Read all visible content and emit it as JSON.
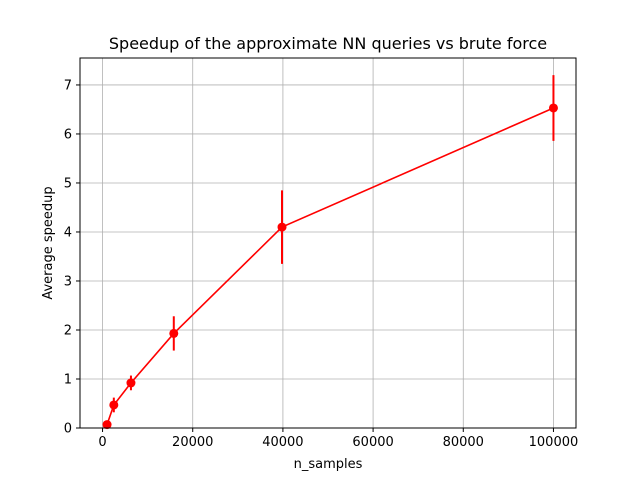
{
  "chart_data": {
    "type": "line",
    "title": "Speedup of the approximate NN queries vs brute force",
    "xlabel": "n_samples",
    "ylabel": "Average speedup",
    "xlim": [
      -5000,
      105000
    ],
    "ylim": [
      0,
      7.55
    ],
    "xticks": [
      0,
      20000,
      40000,
      60000,
      80000,
      100000
    ],
    "yticks": [
      0,
      1,
      2,
      3,
      4,
      5,
      6,
      7
    ],
    "grid": true,
    "color": "#ff0000",
    "series": [
      {
        "x": [
          1000,
          2500,
          6300,
          15800,
          39800,
          100000
        ],
        "y": [
          0.07,
          0.47,
          0.92,
          1.93,
          4.1,
          6.53
        ],
        "yerr": [
          0.05,
          0.15,
          0.15,
          0.35,
          0.75,
          0.67
        ]
      }
    ]
  }
}
